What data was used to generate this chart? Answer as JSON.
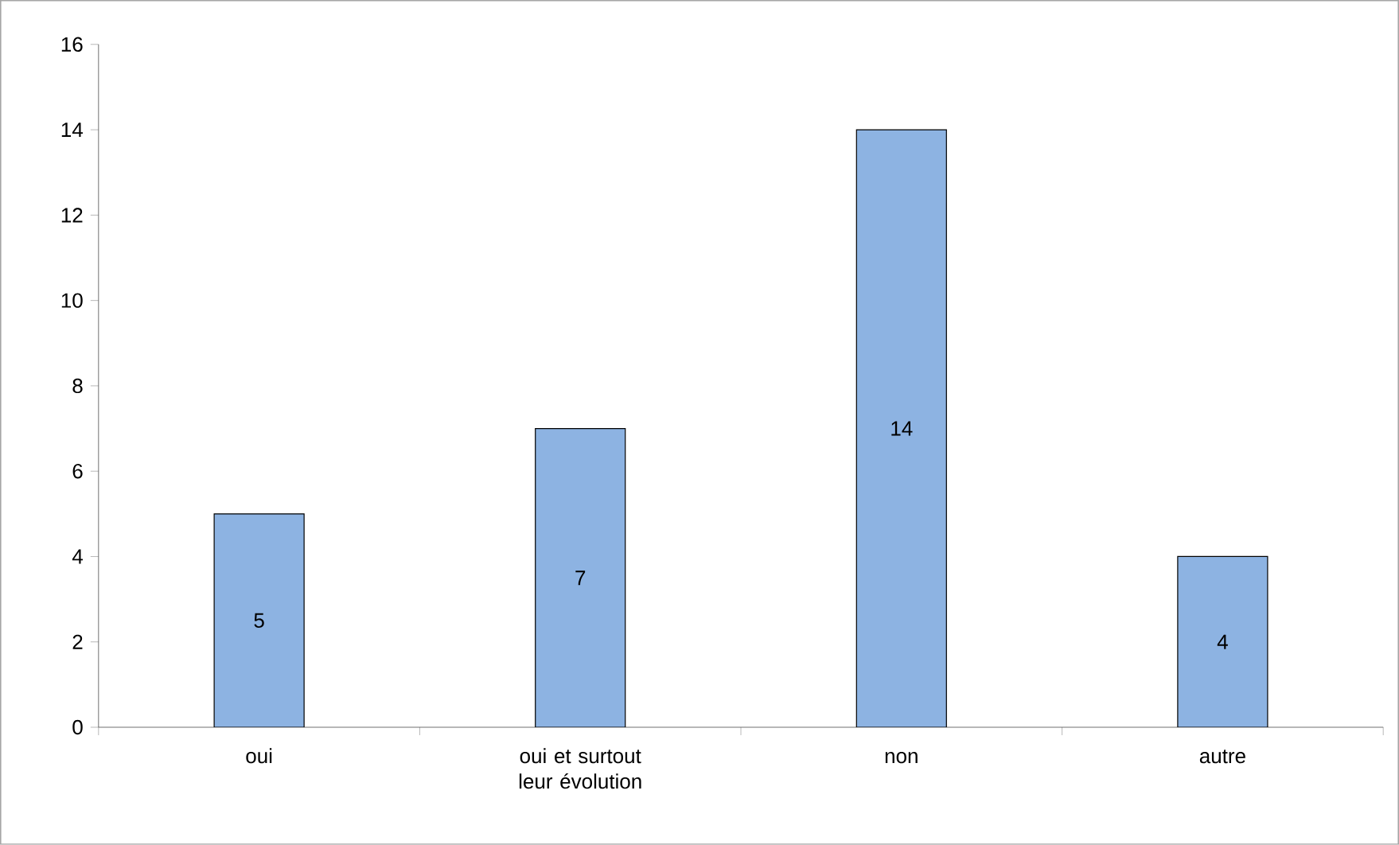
{
  "chart_data": {
    "type": "bar",
    "categories": [
      "oui",
      "oui et surtout leur évolution",
      "non",
      "autre"
    ],
    "values": [
      5,
      7,
      14,
      4
    ],
    "color": "#8db3e2",
    "ylim": [
      0,
      16
    ],
    "yticks": [
      0,
      2,
      4,
      6,
      8,
      10,
      12,
      14,
      16
    ],
    "grid": false,
    "data_labels": true
  }
}
